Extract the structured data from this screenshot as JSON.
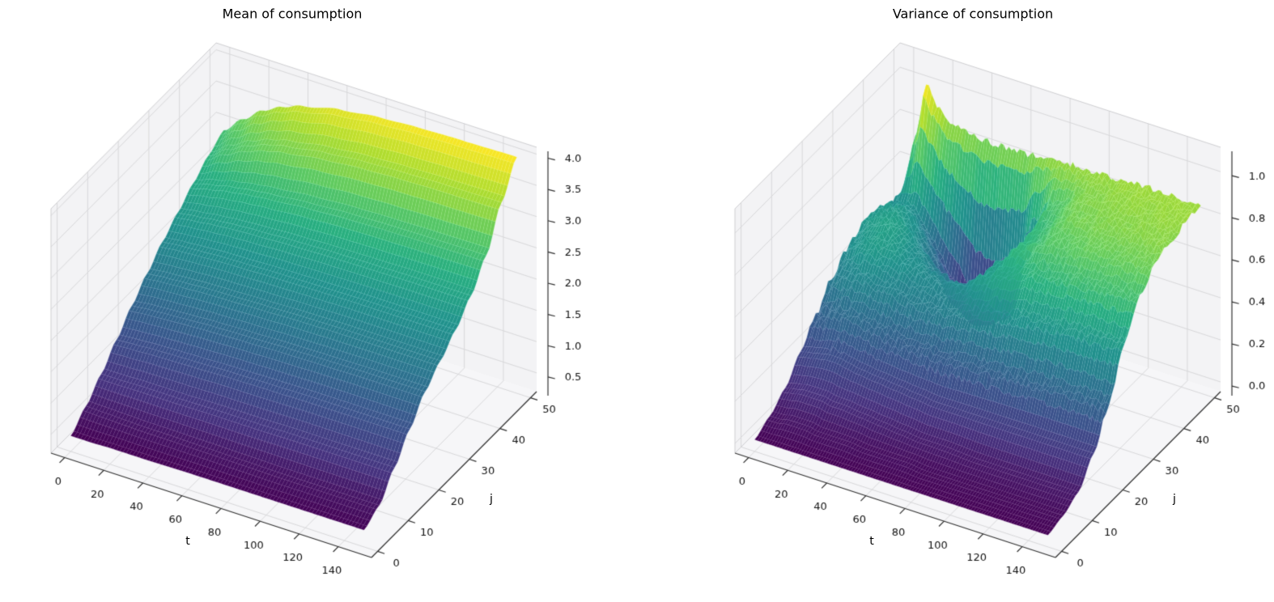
{
  "figure": {
    "background": "#ffffff",
    "pane_color": "#f3f3f5",
    "floor_color": "#f6f6f8",
    "grid_color": "#d8d8da",
    "axis_color": "#2f2f2f",
    "text_color": "#111111"
  },
  "chart_data": [
    {
      "type": "surface",
      "title": "Mean of consumption",
      "xlabel": "t",
      "ylabel": "j",
      "colormap": "viridis",
      "x_ticks": [
        0,
        20,
        40,
        60,
        80,
        100,
        120,
        140
      ],
      "y_ticks": [
        0,
        10,
        20,
        30,
        40,
        50
      ],
      "z_ticks": [
        0.5,
        1.0,
        1.5,
        2.0,
        2.5,
        3.0,
        3.5,
        4.0
      ],
      "xlim": [
        -7,
        157
      ],
      "ylim": [
        -2,
        52
      ],
      "zlim": [
        0.2,
        4.11
      ],
      "surface_noise": 0,
      "t": [
        0,
        10,
        20,
        30,
        40,
        60,
        80,
        100,
        120,
        150
      ],
      "j": [
        0,
        5,
        10,
        15,
        20,
        25,
        30,
        35,
        40,
        45,
        50
      ],
      "z": [
        [
          0.45,
          0.45,
          0.46,
          0.46,
          0.46,
          0.47,
          0.47,
          0.47,
          0.47,
          0.47
        ],
        [
          0.68,
          0.67,
          0.66,
          0.65,
          0.65,
          0.64,
          0.63,
          0.62,
          0.62,
          0.62
        ],
        [
          0.95,
          0.95,
          0.96,
          0.96,
          0.96,
          0.97,
          0.97,
          0.98,
          0.98,
          0.98
        ],
        [
          1.25,
          1.27,
          1.29,
          1.3,
          1.31,
          1.33,
          1.34,
          1.35,
          1.35,
          1.35
        ],
        [
          1.55,
          1.58,
          1.6,
          1.62,
          1.64,
          1.66,
          1.68,
          1.69,
          1.7,
          1.7
        ],
        [
          1.82,
          1.85,
          1.87,
          1.89,
          1.9,
          1.92,
          1.94,
          1.95,
          1.95,
          1.95
        ],
        [
          2.08,
          2.11,
          2.13,
          2.15,
          2.16,
          2.18,
          2.19,
          2.2,
          2.2,
          2.2
        ],
        [
          2.3,
          2.34,
          2.38,
          2.41,
          2.43,
          2.46,
          2.48,
          2.49,
          2.5,
          2.5
        ],
        [
          2.52,
          2.6,
          2.67,
          2.72,
          2.76,
          2.82,
          2.86,
          2.88,
          2.89,
          2.9
        ],
        [
          2.72,
          2.92,
          3.08,
          3.2,
          3.28,
          3.38,
          3.44,
          3.47,
          3.49,
          3.5
        ],
        [
          2.88,
          3.16,
          3.4,
          3.56,
          3.68,
          3.82,
          3.9,
          3.94,
          3.96,
          3.98
        ]
      ]
    },
    {
      "type": "surface",
      "title": "Variance of consumption",
      "xlabel": "t",
      "ylabel": "j",
      "colormap": "viridis",
      "x_ticks": [
        0,
        20,
        40,
        60,
        80,
        100,
        120,
        140
      ],
      "y_ticks": [
        0,
        10,
        20,
        30,
        40,
        50
      ],
      "z_ticks": [
        0.0,
        0.2,
        0.4,
        0.6,
        0.8,
        1.0
      ],
      "xlim": [
        -7,
        157
      ],
      "ylim": [
        -2,
        52
      ],
      "zlim": [
        -0.046,
        1.116
      ],
      "surface_noise": 0.016,
      "t": [
        0,
        5,
        10,
        15,
        20,
        25,
        30,
        40,
        50,
        60,
        70,
        80,
        100,
        120,
        150
      ],
      "j": [
        0,
        5,
        10,
        15,
        20,
        25,
        30,
        35,
        40,
        45,
        50
      ],
      "z": [
        [
          0.01,
          0.01,
          0.01,
          0.01,
          0.01,
          0.01,
          0.01,
          0.01,
          0.01,
          0.01,
          0.01,
          0.01,
          0.01,
          0.01,
          0.01
        ],
        [
          0.05,
          0.05,
          0.06,
          0.06,
          0.06,
          0.05,
          0.05,
          0.05,
          0.04,
          0.04,
          0.04,
          0.03,
          0.03,
          0.03,
          0.03
        ],
        [
          0.11,
          0.12,
          0.13,
          0.13,
          0.13,
          0.12,
          0.12,
          0.11,
          0.1,
          0.09,
          0.08,
          0.08,
          0.07,
          0.07,
          0.07
        ],
        [
          0.21,
          0.22,
          0.23,
          0.24,
          0.24,
          0.23,
          0.22,
          0.21,
          0.2,
          0.19,
          0.18,
          0.18,
          0.18,
          0.18,
          0.18
        ],
        [
          0.31,
          0.33,
          0.35,
          0.36,
          0.36,
          0.35,
          0.34,
          0.32,
          0.31,
          0.31,
          0.31,
          0.32,
          0.33,
          0.34,
          0.34
        ],
        [
          0.41,
          0.44,
          0.46,
          0.47,
          0.47,
          0.46,
          0.45,
          0.43,
          0.43,
          0.44,
          0.46,
          0.49,
          0.52,
          0.54,
          0.55
        ],
        [
          0.48,
          0.51,
          0.54,
          0.55,
          0.54,
          0.53,
          0.51,
          0.48,
          0.47,
          0.49,
          0.55,
          0.6,
          0.66,
          0.69,
          0.7
        ],
        [
          0.52,
          0.55,
          0.57,
          0.57,
          0.55,
          0.52,
          0.48,
          0.42,
          0.38,
          0.42,
          0.55,
          0.65,
          0.74,
          0.77,
          0.78
        ],
        [
          0.52,
          0.54,
          0.55,
          0.53,
          0.49,
          0.43,
          0.36,
          0.18,
          0.12,
          0.16,
          0.45,
          0.65,
          0.78,
          0.81,
          0.82
        ],
        [
          0.49,
          0.5,
          0.5,
          0.45,
          0.38,
          0.3,
          0.22,
          0.08,
          0.06,
          0.12,
          0.45,
          0.7,
          0.81,
          0.83,
          0.84
        ],
        [
          0.45,
          0.75,
          1.0,
          0.92,
          0.86,
          0.84,
          0.83,
          0.82,
          0.82,
          0.82,
          0.83,
          0.84,
          0.84,
          0.85,
          0.85
        ]
      ]
    }
  ]
}
